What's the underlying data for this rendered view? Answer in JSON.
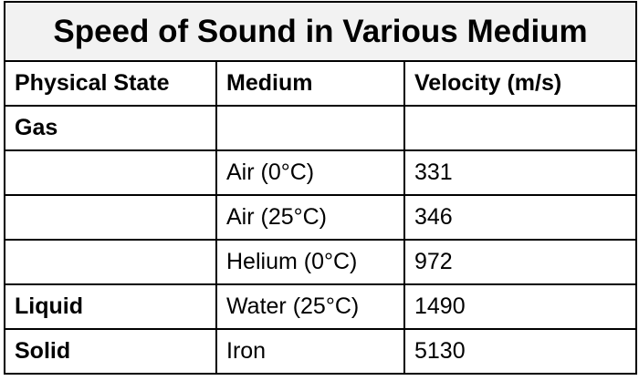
{
  "table": {
    "title": "Speed of Sound in Various Medium",
    "header": [
      "Physical State",
      "Medium",
      "Velocity (m/s)"
    ],
    "rows": [
      [
        "Gas",
        null,
        null
      ],
      [
        null,
        "Air (0°C)",
        331
      ],
      [
        null,
        "Air (25°C)",
        346
      ],
      [
        null,
        "Helium (0°C)",
        972
      ],
      [
        "Liquid",
        "Water (25°C)",
        1490
      ],
      [
        "Solid",
        "Iron",
        5130
      ]
    ]
  }
}
